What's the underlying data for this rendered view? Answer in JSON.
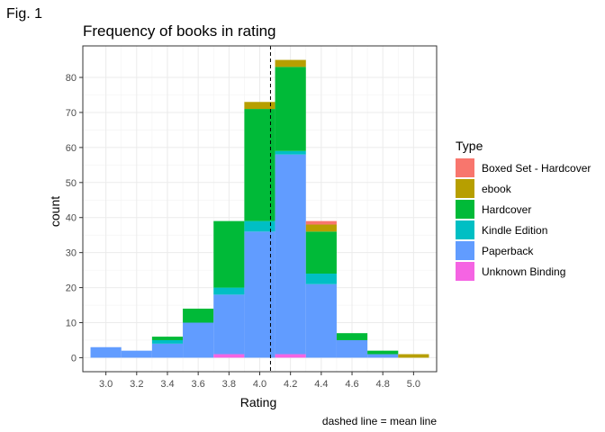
{
  "figure_label": "Fig. 1",
  "chart_data": {
    "type": "bar",
    "stacked": true,
    "title": "Frequency of books in rating",
    "xlabel": "Rating",
    "ylabel": "count",
    "caption": "dashed line = mean line",
    "xlim": [
      2.85,
      5.15
    ],
    "ylim": [
      -4,
      89
    ],
    "x_ticks": [
      "3.0",
      "3.2",
      "3.4",
      "3.6",
      "3.8",
      "4.0",
      "4.2",
      "4.4",
      "4.6",
      "4.8",
      "5.0"
    ],
    "y_ticks": [
      "0",
      "10",
      "20",
      "30",
      "40",
      "50",
      "60",
      "70",
      "80"
    ],
    "bin_width": 0.2,
    "bin_starts": [
      2.9,
      3.1,
      3.3,
      3.5,
      3.7,
      3.9,
      4.1,
      4.3,
      4.5,
      4.7,
      4.9
    ],
    "mean_line": 4.07,
    "grid": true,
    "legend": {
      "title": "Type",
      "position": "right"
    },
    "series": [
      {
        "name": "Boxed Set - Hardcover",
        "color": "#F8766D",
        "values": [
          0,
          0,
          0,
          0,
          0,
          0,
          0,
          1,
          0,
          0,
          0
        ]
      },
      {
        "name": "ebook",
        "color": "#B79F00",
        "values": [
          0,
          0,
          0,
          0,
          0,
          2,
          2,
          2,
          0,
          0,
          1
        ]
      },
      {
        "name": "Hardcover",
        "color": "#00BA38",
        "values": [
          0,
          0,
          1,
          4,
          19,
          32,
          24,
          12,
          2,
          1,
          0
        ]
      },
      {
        "name": "Kindle Edition",
        "color": "#00BFC4",
        "values": [
          0,
          0,
          1,
          0,
          2,
          3,
          1,
          3,
          0,
          0,
          0
        ]
      },
      {
        "name": "Paperback",
        "color": "#619CFF",
        "values": [
          3,
          2,
          4,
          10,
          17,
          36,
          57,
          21,
          5,
          1,
          0
        ]
      },
      {
        "name": "Unknown Binding",
        "color": "#F564E3",
        "values": [
          0,
          0,
          0,
          0,
          1,
          0,
          1,
          0,
          0,
          0,
          0
        ]
      }
    ]
  }
}
